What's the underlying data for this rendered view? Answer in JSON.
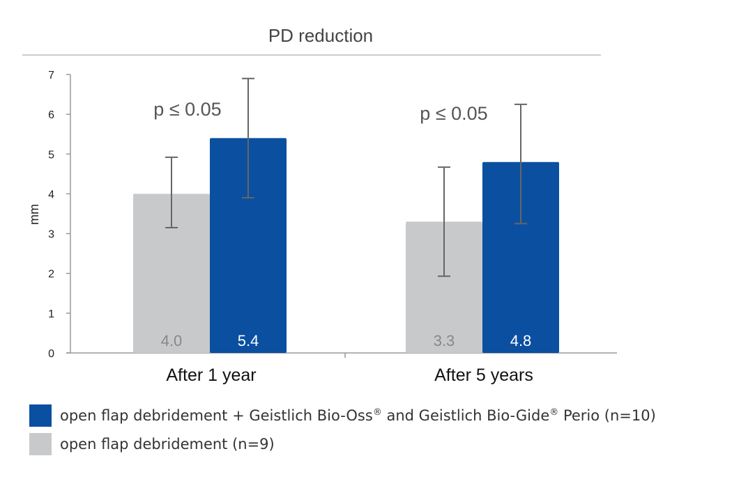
{
  "chart_data": {
    "type": "bar",
    "title": "PD reduction",
    "ylabel": "mm",
    "ylim": [
      0,
      7
    ],
    "yticks": [
      "0",
      "1",
      "2",
      "3",
      "4",
      "5",
      "6",
      "7"
    ],
    "categories": [
      "After 1 year",
      "After 5 years"
    ],
    "series": [
      {
        "name": "open flap debridement (n=9)",
        "color": "#c8c9cb",
        "values": [
          4.0,
          3.3
        ],
        "value_labels": [
          "4.0",
          "3.3"
        ],
        "error_low": [
          3.15,
          1.93
        ],
        "error_high": [
          4.92,
          4.67
        ]
      },
      {
        "name": "open flap debridement + Geistlich Bio-Oss® and Geistlich Bio-Gide® Perio (n=10)",
        "color": "#0a4fa0",
        "values": [
          5.4,
          4.8
        ],
        "value_labels": [
          "5.4",
          "4.8"
        ],
        "error_low": [
          3.9,
          3.25
        ],
        "error_high": [
          6.9,
          6.25
        ]
      }
    ],
    "annotations": [
      "p ≤  0.05",
      "p ≤ 0.05"
    ],
    "grid": false,
    "legend_position": "bottom-left"
  },
  "legend": {
    "items": [
      {
        "color": "#0a4fa0",
        "text_a": "open flap debridement + Geistlich Bio-Oss",
        "sup_a": "®",
        "text_b": " and Geistlich Bio-Gide",
        "sup_b": "®",
        "text_c": " Perio (n=10)"
      },
      {
        "color": "#c8c9cb",
        "text": "open flap debridement (n=9)"
      }
    ]
  }
}
